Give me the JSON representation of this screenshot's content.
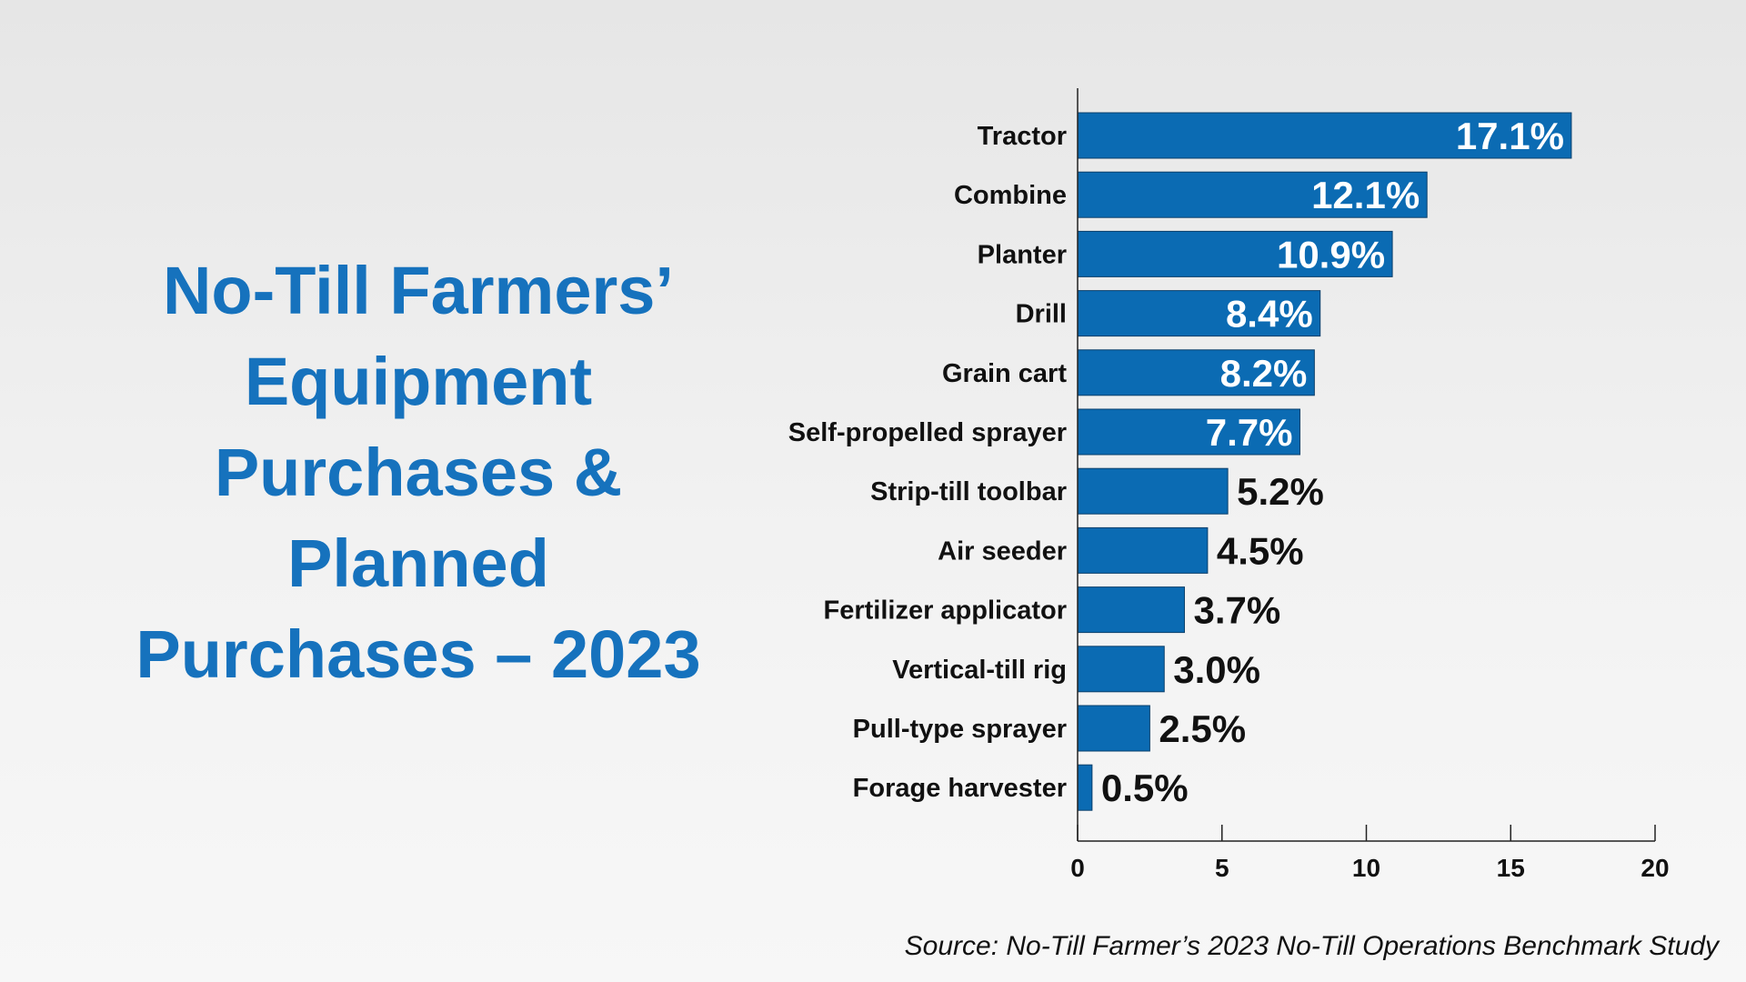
{
  "title_lines": [
    "No-Till Farmers’",
    "Equipment",
    "Purchases &",
    "Planned",
    "Purchases – 2023"
  ],
  "source": "Source: No-Till Farmer’s 2023 No-Till Operations Benchmark Study",
  "colors": {
    "bar": "#0b6bb3",
    "title": "#1672bd",
    "inside_label": "#ffffff",
    "outside_label": "#111111"
  },
  "chart_data": {
    "type": "bar",
    "orientation": "horizontal",
    "categories": [
      "Tractor",
      "Combine",
      "Planter",
      "Drill",
      "Grain cart",
      "Self-propelled sprayer",
      "Strip-till toolbar",
      "Air seeder",
      "Fertilizer applicator",
      "Vertical-till rig",
      "Pull-type sprayer",
      "Forage harvester"
    ],
    "values": [
      17.1,
      12.1,
      10.9,
      8.4,
      8.2,
      7.7,
      5.2,
      4.5,
      3.7,
      3.0,
      2.5,
      0.5
    ],
    "value_labels": [
      "17.1%",
      "12.1%",
      "10.9%",
      "8.4%",
      "8.2%",
      "7.7%",
      "5.2%",
      "4.5%",
      "3.7%",
      "3.0%",
      "2.5%",
      "0.5%"
    ],
    "xlim": [
      0,
      20
    ],
    "xticks": [
      0,
      5,
      10,
      15,
      20
    ],
    "xtick_labels": [
      "0",
      "5",
      "10",
      "15",
      "20"
    ],
    "grid": false,
    "legend": "none"
  }
}
